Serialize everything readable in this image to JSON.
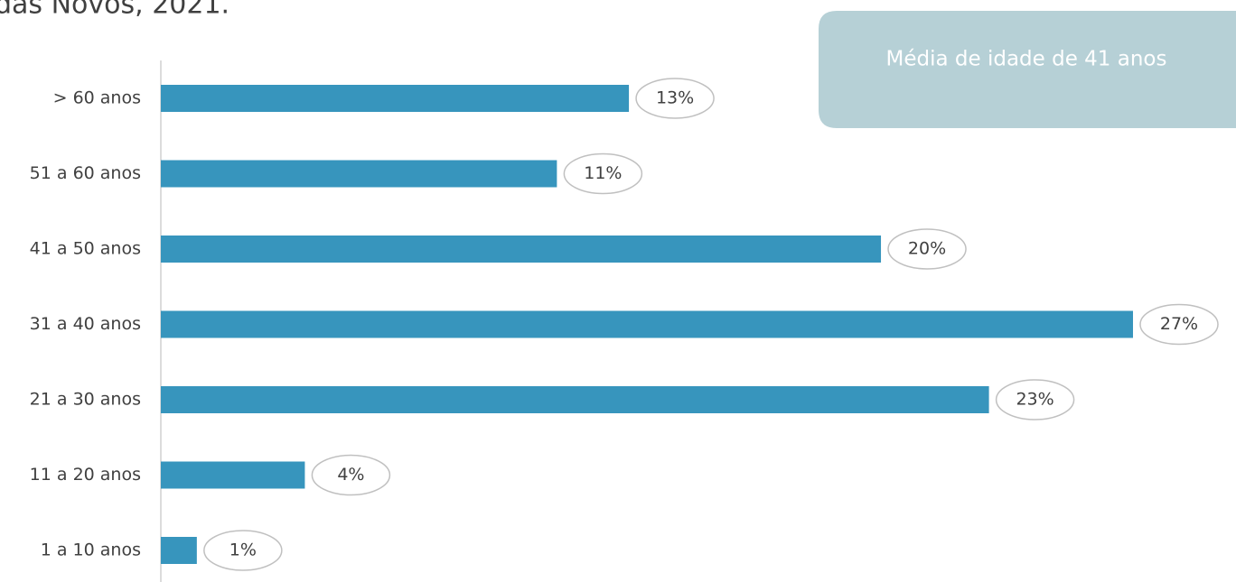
{
  "chart_data": {
    "type": "bar",
    "orientation": "horizontal",
    "title": "das Novos, 2021.",
    "annotation": "Média de idade de 41 anos",
    "categories": [
      "> 60 anos",
      "51 a 60 anos",
      "41 a 50 anos",
      "31 a 40 anos",
      "21 a 30 anos",
      "11 a 20 anos",
      "1 a 10 anos"
    ],
    "values": [
      13,
      11,
      20,
      27,
      23,
      4,
      1
    ],
    "value_labels": [
      "13%",
      "11%",
      "20%",
      "27%",
      "23%",
      "4%",
      "1%"
    ],
    "color": "#3795bd"
  }
}
